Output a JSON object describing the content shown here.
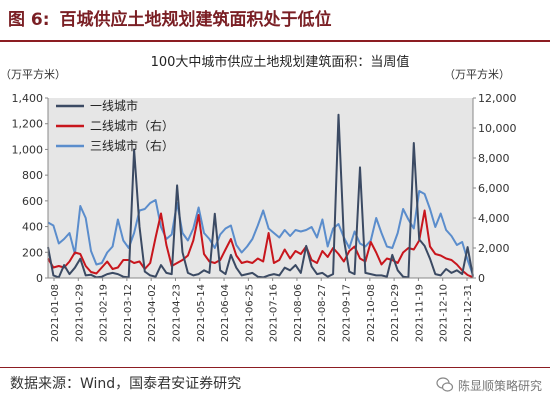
{
  "figure": {
    "number": "图 6:",
    "title": "百城供应土地规划建筑面积处于低位",
    "source": "数据来源：Wind，国泰君安证券研究",
    "watermark": "陈显顺策略研究"
  },
  "colors": {
    "tier1": "#3b4a63",
    "tier2": "#c8161d",
    "tier3": "#5b8dcc",
    "plot_bg": "#e6e6e6",
    "title_red": "#8c1d22"
  },
  "chart_data": {
    "type": "line",
    "title": "100大中城市供应土地规划建筑面积：当周值",
    "y_left_unit": "（万平方米）",
    "y_right_unit": "（万平方米）",
    "ylim_left": [
      0,
      1400
    ],
    "ylim_right": [
      0,
      12000
    ],
    "yticks_left": [
      "0",
      "200",
      "400",
      "600",
      "800",
      "1,000",
      "1,200",
      "1,400"
    ],
    "yticks_right": [
      "0",
      "2,000",
      "4,000",
      "6,000",
      "8,000",
      "10,000",
      "12,000"
    ],
    "xticks": [
      "2021-01-08",
      "2021-01-29",
      "2021-02-19",
      "2021-03-12",
      "2021-04-02",
      "2021-04-23",
      "2021-05-14",
      "2021-06-04",
      "2021-06-25",
      "2021-07-16",
      "2021-08-06",
      "2021-08-27",
      "2021-09-17",
      "2021-10-08",
      "2021-10-29",
      "2021-11-19",
      "2021-12-10",
      "2021-12-31"
    ],
    "grid": false,
    "legend_position": "top-left",
    "series": [
      {
        "name": "一线城市",
        "axis": "left",
        "color_key": "tier1",
        "values": [
          240,
          20,
          5,
          100,
          30,
          80,
          150,
          20,
          25,
          5,
          10,
          30,
          40,
          30,
          10,
          5,
          1000,
          400,
          50,
          20,
          10,
          100,
          40,
          30,
          720,
          200,
          40,
          20,
          30,
          60,
          40,
          500,
          60,
          30,
          180,
          80,
          20,
          30,
          40,
          10,
          5,
          20,
          30,
          20,
          80,
          60,
          100,
          40,
          250,
          90,
          30,
          40,
          10,
          30,
          1270,
          300,
          50,
          30,
          860,
          40,
          30,
          20,
          20,
          10,
          180,
          60,
          10,
          5,
          1050,
          300,
          250,
          150,
          30,
          20,
          70,
          40,
          60,
          30,
          240,
          10
        ]
      },
      {
        "name": "二线城市（右）",
        "axis": "right",
        "color_key": "tier2",
        "values": [
          1300,
          700,
          800,
          700,
          1100,
          1700,
          1600,
          800,
          400,
          300,
          700,
          1100,
          600,
          700,
          1200,
          1200,
          1000,
          1100,
          600,
          1000,
          2700,
          4300,
          2200,
          800,
          1000,
          1200,
          1500,
          2500,
          4200,
          1600,
          1100,
          1000,
          1200,
          1900,
          2600,
          1500,
          1000,
          1100,
          1000,
          1300,
          1100,
          3000,
          1000,
          1200,
          1900,
          1300,
          1800,
          1600,
          2100,
          1200,
          1000,
          1800,
          1400,
          2000,
          1600,
          1100,
          1800,
          2100,
          1300,
          1100,
          2400,
          1700,
          900,
          1300,
          1200,
          1000,
          1700,
          2000,
          1900,
          2500,
          4500,
          2100,
          1600,
          1500,
          1300,
          1200,
          900,
          500,
          200,
          50
        ]
      },
      {
        "name": "三线城市（右）",
        "axis": "right",
        "color_key": "tier3",
        "values": [
          3700,
          3500,
          2300,
          2600,
          3000,
          1600,
          4800,
          4000,
          1800,
          900,
          1000,
          1700,
          2100,
          3900,
          2500,
          2000,
          3000,
          4500,
          4600,
          5000,
          5200,
          3400,
          2600,
          2900,
          5000,
          3000,
          2500,
          3300,
          4700,
          3000,
          2600,
          2000,
          2900,
          3300,
          3500,
          2200,
          1700,
          2100,
          2600,
          3500,
          4500,
          3300,
          3000,
          2700,
          3200,
          2800,
          3200,
          3100,
          3200,
          3400,
          2700,
          3900,
          2100,
          3300,
          3600,
          2700,
          2000,
          3100,
          2300,
          2100,
          2500,
          4000,
          3000,
          2100,
          2000,
          3000,
          4600,
          3900,
          3300,
          5800,
          5600,
          4600,
          3400,
          4300,
          3200,
          2800,
          2200,
          2400,
          1200,
          200
        ]
      }
    ]
  }
}
